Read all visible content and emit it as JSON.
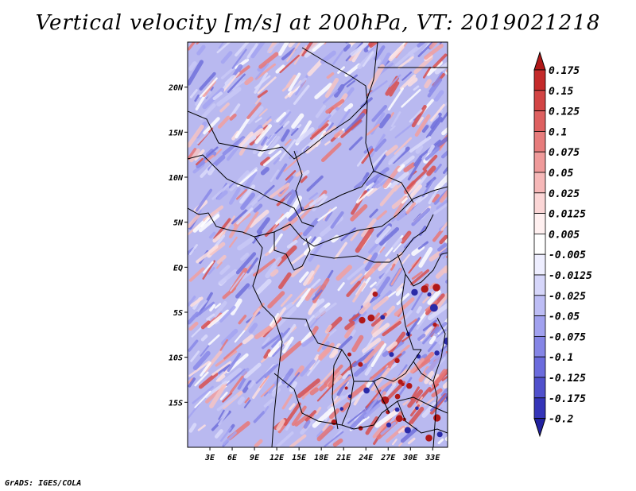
{
  "title": "Vertical velocity [m/s] at 200hPa, VT: 2019021218",
  "credit": "GrADS: IGES/COLA",
  "map": {
    "lon_range": [
      0,
      35
    ],
    "lat_range": [
      -20,
      25
    ],
    "lat_labels": [
      "20N",
      "15N",
      "10N",
      "5N",
      "EQ",
      "5S",
      "10S",
      "15S"
    ],
    "lat_values": [
      20,
      15,
      10,
      5,
      0,
      -5,
      -10,
      -15
    ],
    "lon_labels": [
      "3E",
      "6E",
      "9E",
      "12E",
      "15E",
      "18E",
      "21E",
      "24E",
      "27E",
      "30E",
      "33E"
    ],
    "lon_values": [
      3,
      6,
      9,
      12,
      15,
      18,
      21,
      24,
      27,
      30,
      33
    ],
    "field": "vertical velocity",
    "level": "200hPa",
    "valid_time": "2019021218"
  },
  "colorbar": {
    "labels": [
      "0.175",
      "0.15",
      "0.125",
      "0.1",
      "0.075",
      "0.05",
      "0.025",
      "0.0125",
      "0.005",
      "-0.005",
      "-0.0125",
      "-0.025",
      "-0.05",
      "-0.075",
      "-0.1",
      "-0.125",
      "-0.175",
      "-0.2"
    ],
    "colors": [
      "#b01818",
      "#c42a2a",
      "#d24444",
      "#de6060",
      "#e77c7c",
      "#ef9a9a",
      "#f6b8b8",
      "#fbd6d6",
      "#fff0f0",
      "#ffffff",
      "#eeeeff",
      "#d6d6fa",
      "#bdbdf5",
      "#a1a1ef",
      "#8585e6",
      "#6b6bdd",
      "#5050cc",
      "#3434b8",
      "#2222a0"
    ]
  }
}
